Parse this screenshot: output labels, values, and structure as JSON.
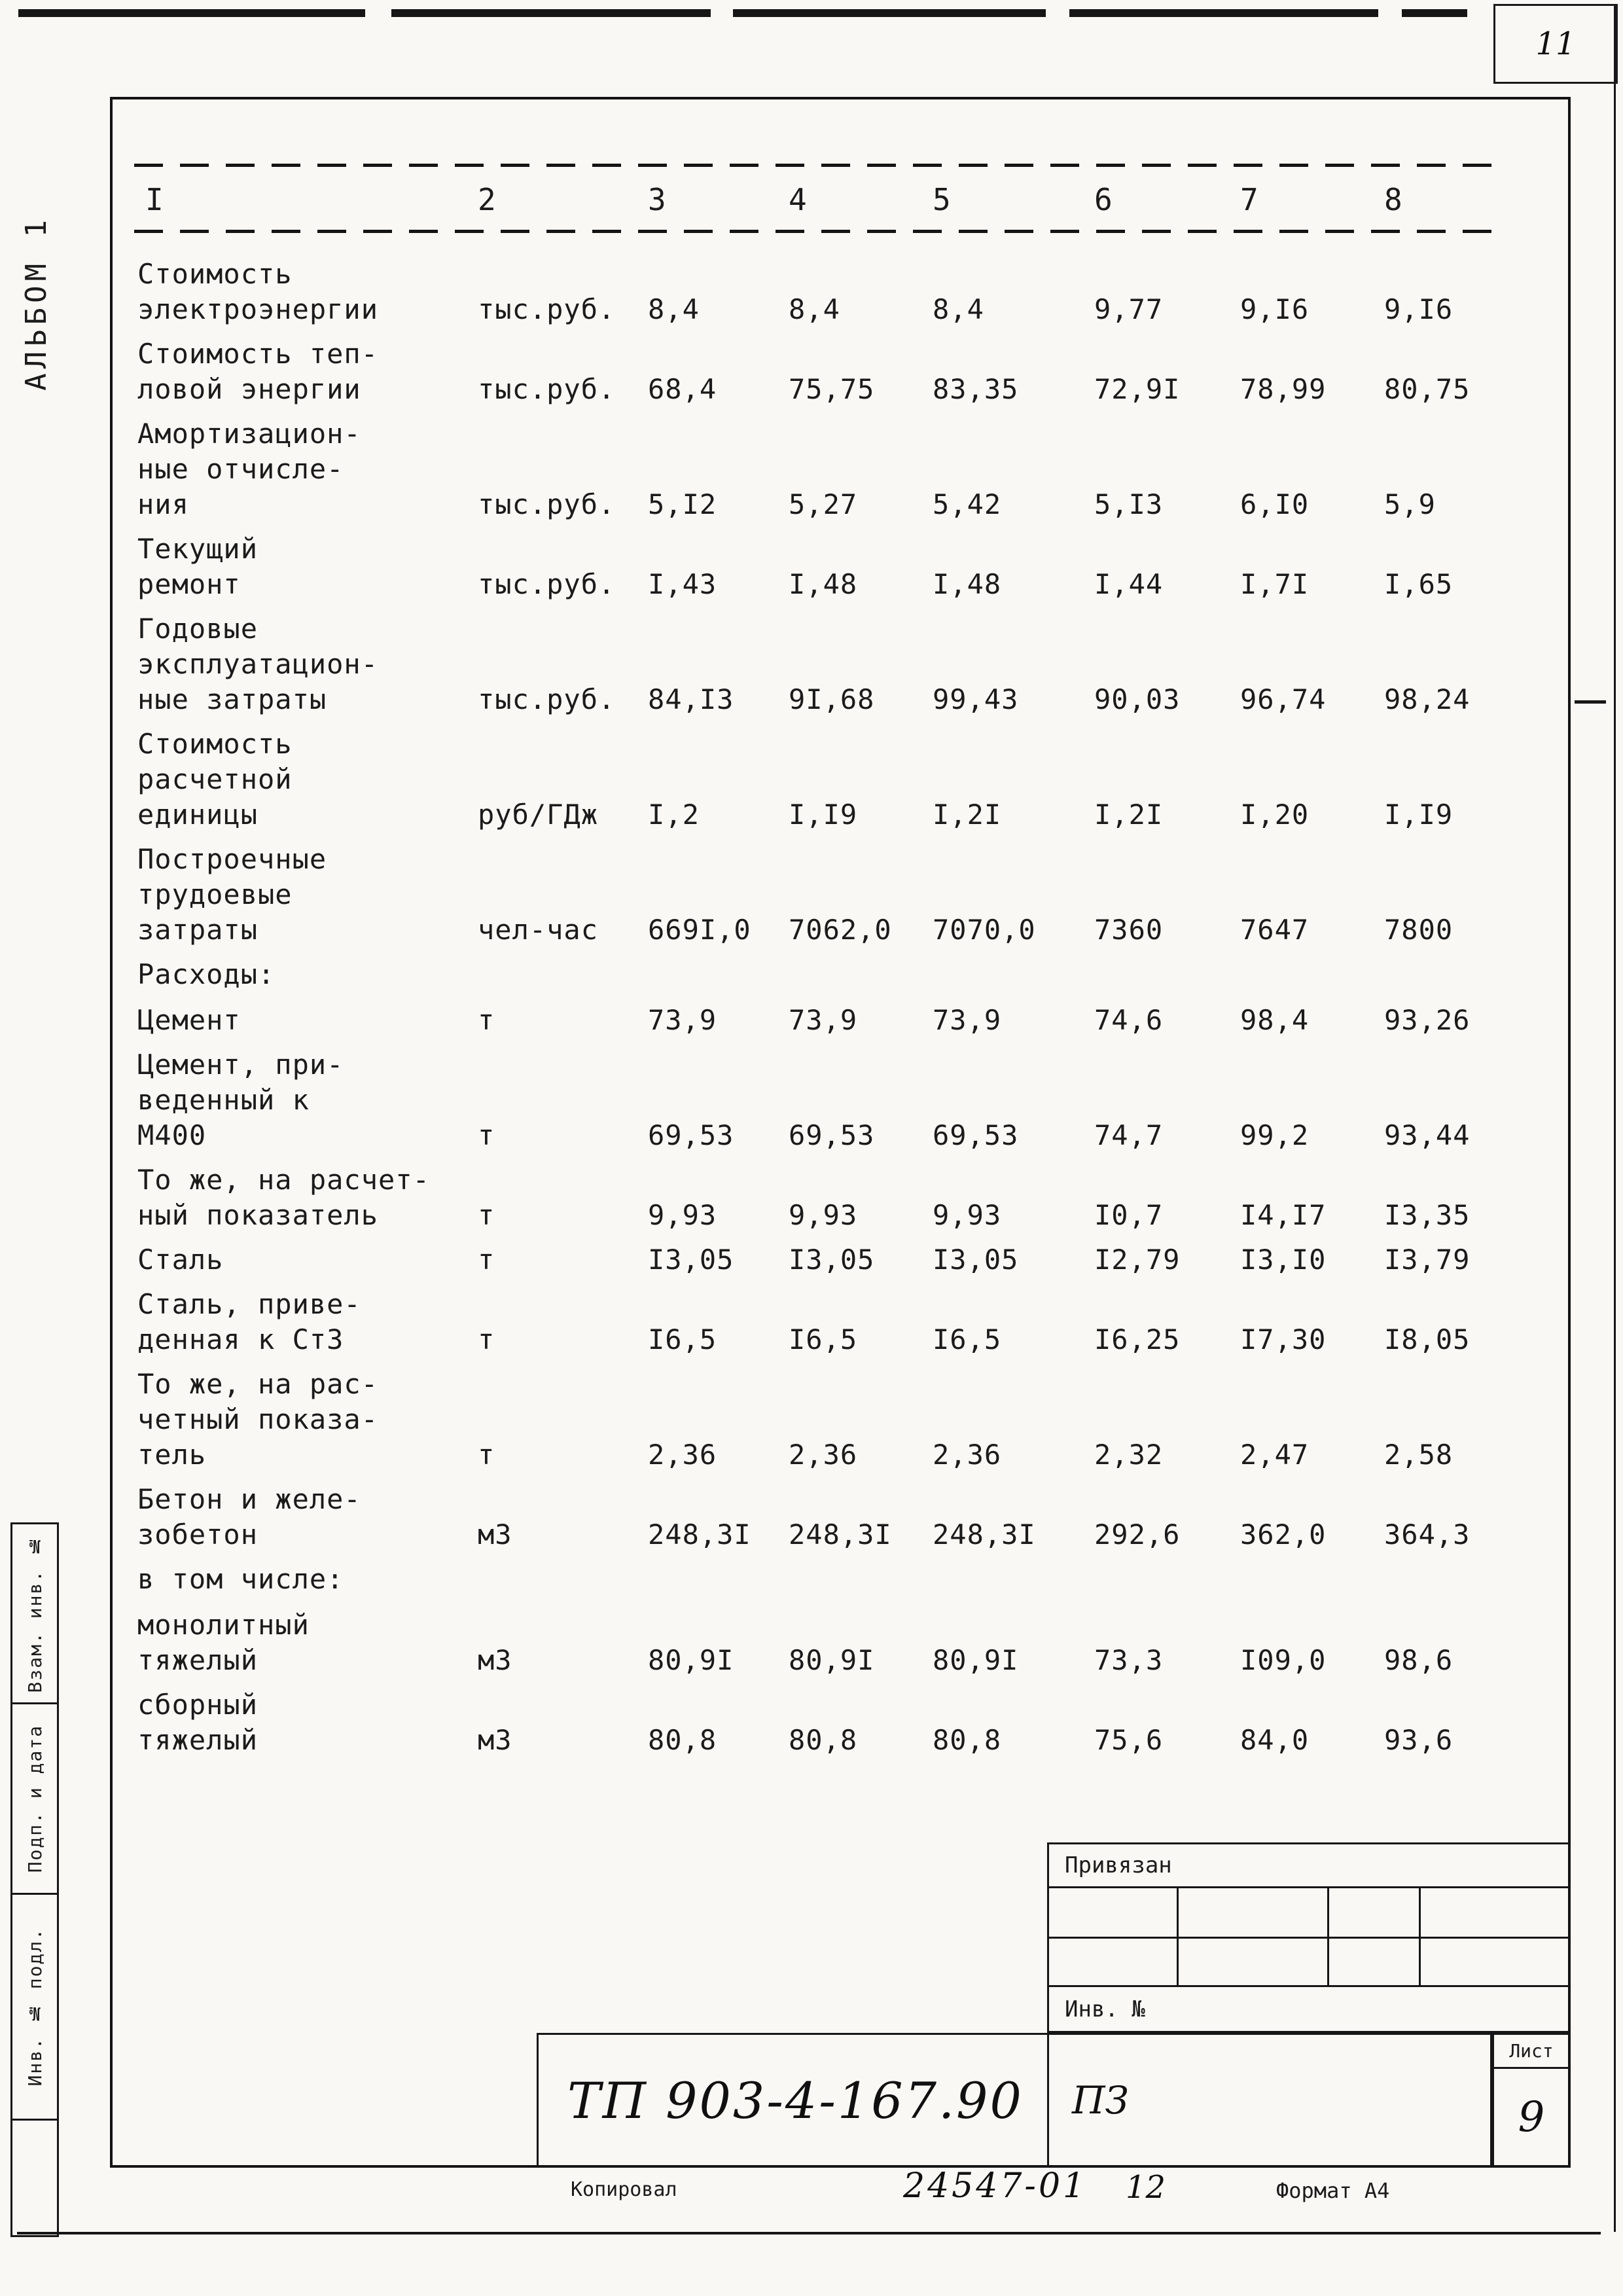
{
  "page": {
    "corner_number": "11",
    "album_label": "АЛЬБОМ 1",
    "side_stamps": [
      "Взам. инв. №",
      "Подп. и дата",
      "Инв. № подл."
    ]
  },
  "table": {
    "columns": [
      "I",
      "2",
      "3",
      "4",
      "5",
      "6",
      "7",
      "8"
    ],
    "rows": [
      {
        "label": "Стоимость\nэлектроэнергии",
        "unit": "тыс.руб.",
        "values": [
          "8,4",
          "8,4",
          "8,4",
          "9,77",
          "9,I6",
          "9,I6"
        ]
      },
      {
        "label": "Стоимость теп-\nловой энергии",
        "unit": "тыс.руб.",
        "values": [
          "68,4",
          "75,75",
          "83,35",
          "72,9I",
          "78,99",
          "80,75"
        ]
      },
      {
        "label": "Амортизацион-\nные отчисле-\nния",
        "unit": "тыс.руб.",
        "values": [
          "5,I2",
          "5,27",
          "5,42",
          "5,I3",
          "6,I0",
          "5,9"
        ]
      },
      {
        "label": "Текущий\nремонт",
        "unit": "тыс.руб.",
        "values": [
          "I,43",
          "I,48",
          "I,48",
          "I,44",
          "I,7I",
          "I,65"
        ]
      },
      {
        "label": "Годовые\nэксплуатацион-\nные затраты",
        "unit": "тыс.руб.",
        "values": [
          "84,I3",
          "9I,68",
          "99,43",
          "90,03",
          "96,74",
          "98,24"
        ]
      },
      {
        "label": "Стоимость\nрасчетной\nединицы",
        "unit": "руб/ГДж",
        "values": [
          "I,2",
          "I,I9",
          "I,2I",
          "I,2I",
          "I,20",
          "I,I9"
        ]
      },
      {
        "label": "Построечные\nтрудоевые\nзатраты",
        "unit": "чел-час",
        "values": [
          "669I,0",
          "7062,0",
          "7070,0",
          "7360",
          "7647",
          "7800"
        ]
      },
      {
        "type": "section",
        "label": "Расходы:"
      },
      {
        "label": "Цемент",
        "unit": "т",
        "values": [
          "73,9",
          "73,9",
          "73,9",
          "74,6",
          "98,4",
          "93,26"
        ]
      },
      {
        "label": "Цемент, при-\nведенный к\nМ400",
        "unit": "т",
        "values": [
          "69,53",
          "69,53",
          "69,53",
          "74,7",
          "99,2",
          "93,44"
        ]
      },
      {
        "label": "То же, на расчет-\nный показатель",
        "unit": "т",
        "values": [
          "9,93",
          "9,93",
          "9,93",
          "I0,7",
          "I4,I7",
          "I3,35"
        ]
      },
      {
        "label": "Сталь",
        "unit": "т",
        "values": [
          "I3,05",
          "I3,05",
          "I3,05",
          "I2,79",
          "I3,I0",
          "I3,79"
        ]
      },
      {
        "label": "Сталь, приве-\nденная к Ст3",
        "unit": "т",
        "values": [
          "I6,5",
          "I6,5",
          "I6,5",
          "I6,25",
          "I7,30",
          "I8,05"
        ]
      },
      {
        "label": "То же, на рас-\nчетный показа-\nтель",
        "unit": "т",
        "values": [
          "2,36",
          "2,36",
          "2,36",
          "2,32",
          "2,47",
          "2,58"
        ]
      },
      {
        "label": "Бетон и желе-\nзобетон",
        "unit": "м3",
        "values": [
          "248,3I",
          "248,3I",
          "248,3I",
          "292,6",
          "362,0",
          "364,3"
        ]
      },
      {
        "type": "section",
        "label": "в том числе:"
      },
      {
        "label": "монолитный\nтяжелый",
        "unit": "м3",
        "values": [
          "80,9I",
          "80,9I",
          "80,9I",
          "73,3",
          "I09,0",
          "98,6"
        ]
      },
      {
        "label": "сборный\nтяжелый",
        "unit": "м3",
        "values": [
          "80,8",
          "80,8",
          "80,8",
          "75,6",
          "84,0",
          "93,6"
        ]
      }
    ]
  },
  "title_block": {
    "privyazan": "Привязан",
    "inv_no": "Инв. №",
    "doc_number": "ТП 903-4-167.90",
    "doc_type": "ПЗ",
    "sheet_label": "Лист",
    "sheet_number": "9"
  },
  "footer": {
    "kopiroval": "Копировал",
    "order_number": "24547-01",
    "order_suffix": "12",
    "format": "Формат А4"
  }
}
